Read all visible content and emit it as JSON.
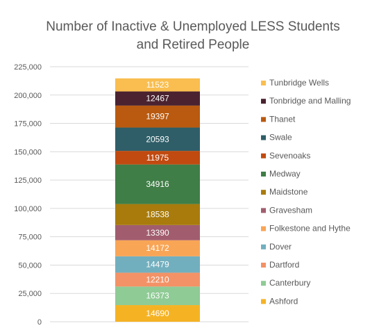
{
  "chart_data": {
    "type": "bar",
    "stacked": true,
    "title": "Number of Inactive & Unemployed LESS Students and Retired People",
    "title_lines": [
      "Number of Inactive & Unemployed LESS Students",
      "and Retired People"
    ],
    "ylim": [
      0,
      225000
    ],
    "yticks": [
      "0",
      "25,000",
      "50,000",
      "75,000",
      "100,000",
      "125,000",
      "150,000",
      "175,000",
      "200,000",
      "225,000"
    ],
    "ytick_values": [
      0,
      25000,
      50000,
      75000,
      100000,
      125000,
      150000,
      175000,
      200000,
      225000
    ],
    "grid": true,
    "legend_position": "right",
    "series": [
      {
        "name": "Ashford",
        "value": 14690,
        "label": "14690",
        "color": "#F5B324",
        "label_color": "#ffffff"
      },
      {
        "name": "Canterbury",
        "value": 16373,
        "label": "16373",
        "color": "#8FCB95",
        "label_color": "#ffffff"
      },
      {
        "name": "Dartford",
        "value": 12210,
        "label": "12210",
        "color": "#F39266",
        "label_color": "#ffffff"
      },
      {
        "name": "Dover",
        "value": 14479,
        "label": "14479",
        "color": "#72AFBE",
        "label_color": "#ffffff"
      },
      {
        "name": "Folkestone and Hythe",
        "value": 14172,
        "label": "14172",
        "color": "#F9A556",
        "label_color": "#ffffff"
      },
      {
        "name": "Gravesham",
        "value": 13390,
        "label": "13390",
        "color": "#A15D6E",
        "label_color": "#ffffff"
      },
      {
        "name": "Maidstone",
        "value": 18538,
        "label": "18538",
        "color": "#A87B0C",
        "label_color": "#ffffff"
      },
      {
        "name": "Medway",
        "value": 34916,
        "label": "34916",
        "color": "#3F7E47",
        "label_color": "#ffffff"
      },
      {
        "name": "Sevenoaks",
        "value": 11975,
        "label": "11975",
        "color": "#C14A10",
        "label_color": "#ffffff"
      },
      {
        "name": "Swale",
        "value": 20593,
        "label": "20593",
        "color": "#2F5E68",
        "label_color": "#ffffff"
      },
      {
        "name": "Thanet",
        "value": 19397,
        "label": "19397",
        "color": "#B95A10",
        "label_color": "#ffffff"
      },
      {
        "name": "Tonbridge and Malling",
        "value": 12467,
        "label": "12467",
        "color": "#4A2230",
        "label_color": "#ffffff"
      },
      {
        "name": "Tunbridge Wells",
        "value": 11523,
        "label": "11523",
        "color": "#F9BE4F",
        "label_color": "#ffffff"
      }
    ]
  }
}
